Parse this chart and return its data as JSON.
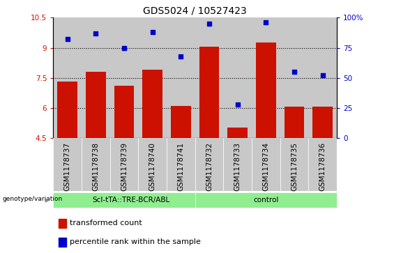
{
  "title": "GDS5024 / 10527423",
  "samples": [
    "GSM1178737",
    "GSM1178738",
    "GSM1178739",
    "GSM1178740",
    "GSM1178741",
    "GSM1178732",
    "GSM1178733",
    "GSM1178734",
    "GSM1178735",
    "GSM1178736"
  ],
  "transformed_count": [
    7.3,
    7.8,
    7.1,
    7.9,
    6.1,
    9.05,
    5.0,
    9.25,
    6.05,
    6.05
  ],
  "percentile_rank": [
    82,
    87,
    75,
    88,
    68,
    95,
    28,
    96,
    55,
    52
  ],
  "bar_color": "#cc1100",
  "dot_color": "#0000cc",
  "bar_bottom": 4.5,
  "ylim_left": [
    4.5,
    10.5
  ],
  "ylim_right": [
    0,
    100
  ],
  "yticks_left": [
    4.5,
    6.0,
    7.5,
    9.0,
    10.5
  ],
  "ytick_labels_left": [
    "4.5",
    "6",
    "7.5",
    "9",
    "10.5"
  ],
  "yticks_right": [
    0,
    25,
    50,
    75,
    100
  ],
  "ytick_labels_right": [
    "0",
    "25",
    "50",
    "75",
    "100%"
  ],
  "group1_label": "ScI-tTA::TRE-BCR/ABL",
  "group2_label": "control",
  "group1_count": 5,
  "group2_count": 5,
  "group_color": "#90ee90",
  "label_color_left": "#cc1100",
  "label_color_right": "#0000cc",
  "grid_color": "black",
  "col_bg_color": "#c8c8c8",
  "genotype_label": "genotype/variation",
  "legend_bar_label": "transformed count",
  "legend_dot_label": "percentile rank within the sample",
  "title_fontsize": 10,
  "tick_fontsize": 7.5,
  "legend_fontsize": 8
}
